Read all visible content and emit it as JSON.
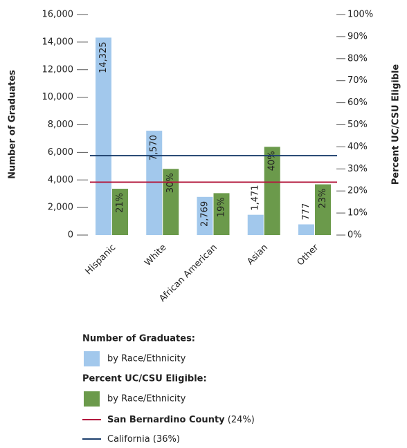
{
  "chart_data": {
    "type": "bar",
    "categories": [
      "Hispanic",
      "White",
      "African American",
      "Asian",
      "Other"
    ],
    "ylabel": "Number of Graduates",
    "y2label": "Percent UC/CSU Eligible",
    "ylim": [
      0,
      16000
    ],
    "yticks": [
      {
        "value": 0,
        "label": "0"
      },
      {
        "value": 2000,
        "label": "2,000"
      },
      {
        "value": 4000,
        "label": "4,000"
      },
      {
        "value": 6000,
        "label": "6,000"
      },
      {
        "value": 8000,
        "label": "8,000"
      },
      {
        "value": 10000,
        "label": "10,000"
      },
      {
        "value": 12000,
        "label": "12,000"
      },
      {
        "value": 14000,
        "label": "14,000"
      },
      {
        "value": 16000,
        "label": "16,000"
      }
    ],
    "y2lim": [
      0,
      100
    ],
    "y2ticks": [
      {
        "value": 0,
        "label": "0%"
      },
      {
        "value": 10,
        "label": "10%"
      },
      {
        "value": 20,
        "label": "20%"
      },
      {
        "value": 30,
        "label": "30%"
      },
      {
        "value": 40,
        "label": "40%"
      },
      {
        "value": 50,
        "label": "50%"
      },
      {
        "value": 60,
        "label": "60%"
      },
      {
        "value": 70,
        "label": "70%"
      },
      {
        "value": 80,
        "label": "80%"
      },
      {
        "value": 90,
        "label": "90%"
      },
      {
        "value": 100,
        "label": "100%"
      }
    ],
    "series": [
      {
        "name": "by Race/Ethnicity",
        "group": "Number of Graduates:",
        "color": "#a2c8ec",
        "values": [
          14325,
          7570,
          2769,
          1471,
          777
        ],
        "value_labels": [
          "14,325",
          "7,570",
          "2,769",
          "1,471",
          "777"
        ]
      },
      {
        "name": "by Race/Ethnicity",
        "group": "Percent UC/CSU Eligible:",
        "color": "#6b9a4b",
        "axis": "y2",
        "values": [
          21,
          30,
          19,
          40,
          23
        ],
        "value_labels": [
          "21%",
          "30%",
          "19%",
          "40%",
          "23%"
        ]
      }
    ],
    "reference_lines": [
      {
        "name": "San Bernardino County",
        "value": 24,
        "value_label": "(24%)",
        "color": "#b3183d",
        "axis": "y2"
      },
      {
        "name": "California",
        "value": 36,
        "value_label": "(36%)",
        "color": "#1c3f6d",
        "axis": "y2"
      }
    ]
  }
}
